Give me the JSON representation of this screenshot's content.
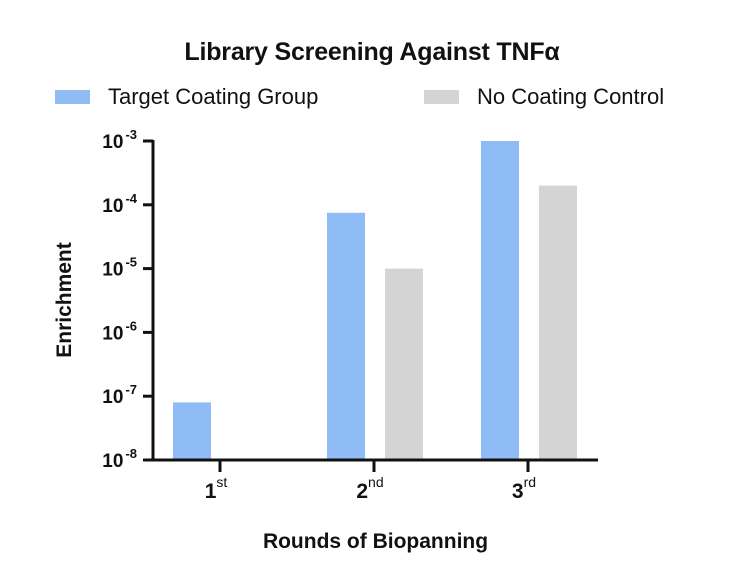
{
  "chart_data": {
    "type": "bar",
    "title": "Library Screening Against TNFα",
    "xlabel": "Rounds of Biopanning",
    "ylabel": "Enrichment",
    "yscale": "log",
    "ylim": [
      1e-08,
      0.001
    ],
    "yticks": [
      {
        "base": "10",
        "exp": "-3"
      },
      {
        "base": "10",
        "exp": "-4"
      },
      {
        "base": "10",
        "exp": "-5"
      },
      {
        "base": "10",
        "exp": "-6"
      },
      {
        "base": "10",
        "exp": "-7"
      },
      {
        "base": "10",
        "exp": "-8"
      }
    ],
    "categories": [
      {
        "num": "1",
        "sup": "st"
      },
      {
        "num": "2",
        "sup": "nd"
      },
      {
        "num": "3",
        "sup": "rd"
      }
    ],
    "series": [
      {
        "name": "Target Coating Group",
        "color": "#8fbcf5",
        "values": [
          8e-08,
          7.5e-05,
          0.001
        ]
      },
      {
        "name": "No Coating Control",
        "color": "#d4d4d4",
        "values": [
          null,
          1e-05,
          0.0002
        ]
      }
    ],
    "legend_position": "top",
    "grid": false
  }
}
